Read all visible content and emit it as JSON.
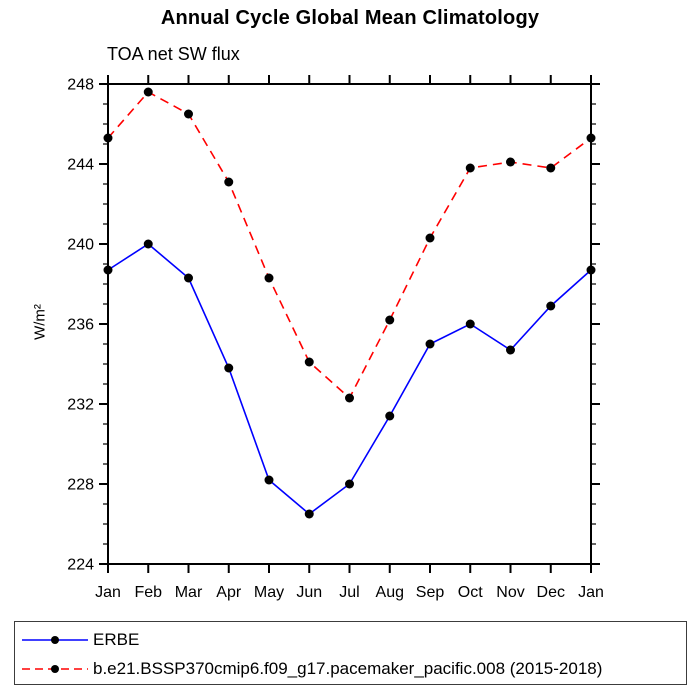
{
  "chart_data": {
    "type": "line",
    "title": "Annual Cycle Global Mean Climatology",
    "subtitle": "TOA net SW flux",
    "ylabel": "W/m²",
    "categories": [
      "Jan",
      "Feb",
      "Mar",
      "Apr",
      "May",
      "Jun",
      "Jul",
      "Aug",
      "Sep",
      "Oct",
      "Nov",
      "Dec",
      "Jan"
    ],
    "ylim": [
      224,
      248
    ],
    "yticks": [
      224,
      228,
      232,
      236,
      240,
      244,
      248
    ],
    "ytick_minor_step": 1,
    "grid": false,
    "legend_position": "bottom",
    "series": [
      {
        "name": "ERBE",
        "color": "#0000ff",
        "line_style": "solid",
        "marker": "circle",
        "marker_color": "#000000",
        "values": [
          238.7,
          240.0,
          238.3,
          233.8,
          228.2,
          226.5,
          228.0,
          231.4,
          235.0,
          236.0,
          234.7,
          236.9,
          238.7
        ]
      },
      {
        "name": "b.e21.BSSP370cmip6.f09_g17.pacemaker_pacific.008 (2015-2018)",
        "color": "#ff0000",
        "line_style": "dashed",
        "marker": "circle",
        "marker_color": "#000000",
        "values": [
          245.3,
          247.6,
          246.5,
          243.1,
          238.3,
          234.1,
          232.3,
          236.2,
          240.3,
          243.8,
          244.1,
          243.8,
          245.3
        ]
      }
    ]
  }
}
